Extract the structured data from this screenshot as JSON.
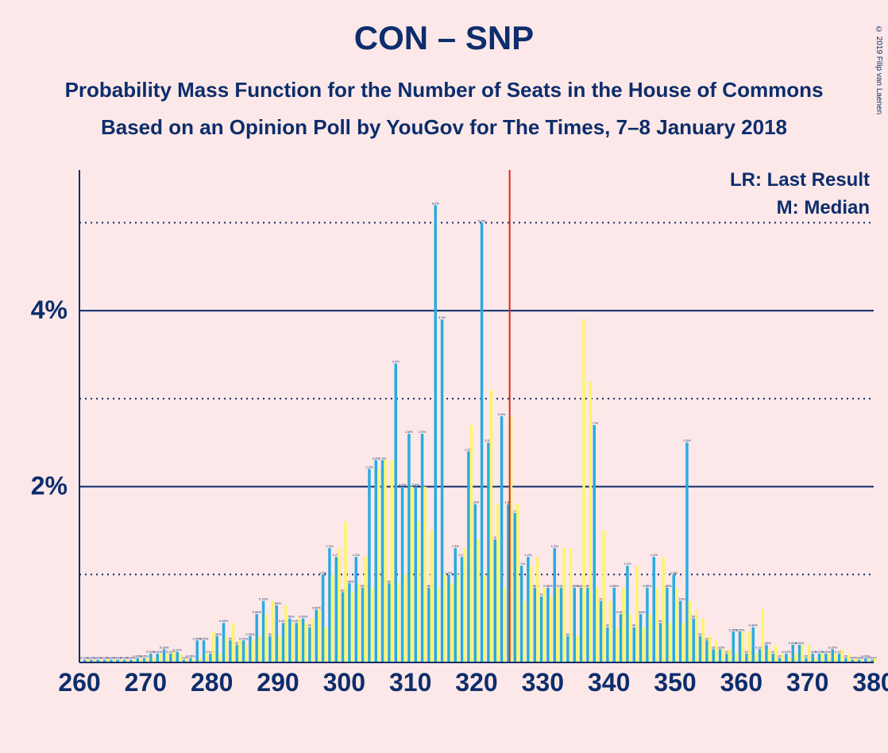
{
  "title": "CON – SNP",
  "subtitle1": "Probability Mass Function for the Number of Seats in the House of Commons",
  "subtitle2": "Based on an Opinion Poll by YouGov for The Times, 7–8 January 2018",
  "copyright": "© 2019 Filip van Laenen",
  "legend": {
    "lr": "LR: Last Result",
    "m": "M: Median"
  },
  "chart": {
    "type": "bar",
    "background_color": "#fce8e8",
    "xlim": [
      260,
      380
    ],
    "ylim": [
      0,
      5.6
    ],
    "x_ticks": [
      260,
      270,
      280,
      290,
      300,
      310,
      320,
      330,
      340,
      350,
      360,
      370,
      380
    ],
    "y_ticks": [
      2,
      4
    ],
    "y_dotted": [
      1,
      3,
      5
    ],
    "y_axis_format": "%",
    "median_line_x": 325,
    "median_line_color": "#d52b1e",
    "grid_color": "#0d2d6c",
    "axis_color": "#0d2d6c",
    "axis_fontsize": 32,
    "title_fontsize": 42,
    "subtitle_fontsize": 26,
    "legend_fontsize": 24,
    "bar_colors": {
      "blue": "#29abe2",
      "yellow": "#fff56b"
    },
    "series_blue": [
      {
        "x": 261,
        "p": 0.03
      },
      {
        "x": 262,
        "p": 0.03
      },
      {
        "x": 263,
        "p": 0.03
      },
      {
        "x": 264,
        "p": 0.03
      },
      {
        "x": 265,
        "p": 0.03
      },
      {
        "x": 266,
        "p": 0.03
      },
      {
        "x": 267,
        "p": 0.03
      },
      {
        "x": 268,
        "p": 0.03
      },
      {
        "x": 269,
        "p": 0.05
      },
      {
        "x": 270,
        "p": 0.05
      },
      {
        "x": 271,
        "p": 0.1
      },
      {
        "x": 272,
        "p": 0.1
      },
      {
        "x": 273,
        "p": 0.15
      },
      {
        "x": 274,
        "p": 0.1
      },
      {
        "x": 275,
        "p": 0.12
      },
      {
        "x": 276,
        "p": 0.03
      },
      {
        "x": 277,
        "p": 0.05
      },
      {
        "x": 278,
        "p": 0.25
      },
      {
        "x": 279,
        "p": 0.25
      },
      {
        "x": 280,
        "p": 0.1
      },
      {
        "x": 281,
        "p": 0.3
      },
      {
        "x": 282,
        "p": 0.45
      },
      {
        "x": 283,
        "p": 0.25
      },
      {
        "x": 284,
        "p": 0.2
      },
      {
        "x": 285,
        "p": 0.25
      },
      {
        "x": 286,
        "p": 0.3
      },
      {
        "x": 287,
        "p": 0.55
      },
      {
        "x": 288,
        "p": 0.7
      },
      {
        "x": 289,
        "p": 0.3
      },
      {
        "x": 290,
        "p": 0.65
      },
      {
        "x": 291,
        "p": 0.45
      },
      {
        "x": 292,
        "p": 0.5
      },
      {
        "x": 293,
        "p": 0.45
      },
      {
        "x": 294,
        "p": 0.5
      },
      {
        "x": 295,
        "p": 0.4
      },
      {
        "x": 296,
        "p": 0.6
      },
      {
        "x": 297,
        "p": 1.0
      },
      {
        "x": 298,
        "p": 1.3
      },
      {
        "x": 299,
        "p": 1.2
      },
      {
        "x": 300,
        "p": 0.8
      },
      {
        "x": 301,
        "p": 0.9
      },
      {
        "x": 302,
        "p": 1.2
      },
      {
        "x": 303,
        "p": 0.85
      },
      {
        "x": 304,
        "p": 2.2
      },
      {
        "x": 305,
        "p": 2.3
      },
      {
        "x": 306,
        "p": 2.3
      },
      {
        "x": 307,
        "p": 0.9
      },
      {
        "x": 308,
        "p": 3.4
      },
      {
        "x": 309,
        "p": 2.0
      },
      {
        "x": 310,
        "p": 2.6
      },
      {
        "x": 311,
        "p": 2.0
      },
      {
        "x": 312,
        "p": 2.6
      },
      {
        "x": 313,
        "p": 0.85
      },
      {
        "x": 314,
        "p": 5.2
      },
      {
        "x": 315,
        "p": 3.9
      },
      {
        "x": 316,
        "p": 1.0
      },
      {
        "x": 317,
        "p": 1.3
      },
      {
        "x": 318,
        "p": 1.2
      },
      {
        "x": 319,
        "p": 2.4
      },
      {
        "x": 320,
        "p": 1.8
      },
      {
        "x": 321,
        "p": 5.0
      },
      {
        "x": 322,
        "p": 2.5
      },
      {
        "x": 323,
        "p": 1.4
      },
      {
        "x": 324,
        "p": 2.8
      },
      {
        "x": 325,
        "p": 1.8
      },
      {
        "x": 326,
        "p": 1.7
      },
      {
        "x": 327,
        "p": 1.1
      },
      {
        "x": 328,
        "p": 1.2
      },
      {
        "x": 329,
        "p": 0.85
      },
      {
        "x": 330,
        "p": 0.75
      },
      {
        "x": 331,
        "p": 0.85
      },
      {
        "x": 332,
        "p": 1.3
      },
      {
        "x": 333,
        "p": 0.85
      },
      {
        "x": 334,
        "p": 0.3
      },
      {
        "x": 335,
        "p": 0.85
      },
      {
        "x": 336,
        "p": 0.85
      },
      {
        "x": 337,
        "p": 0.85
      },
      {
        "x": 338,
        "p": 2.7
      },
      {
        "x": 339,
        "p": 0.7
      },
      {
        "x": 340,
        "p": 0.4
      },
      {
        "x": 341,
        "p": 0.85
      },
      {
        "x": 342,
        "p": 0.55
      },
      {
        "x": 343,
        "p": 1.1
      },
      {
        "x": 344,
        "p": 0.4
      },
      {
        "x": 345,
        "p": 0.55
      },
      {
        "x": 346,
        "p": 0.85
      },
      {
        "x": 347,
        "p": 1.2
      },
      {
        "x": 348,
        "p": 0.45
      },
      {
        "x": 349,
        "p": 0.85
      },
      {
        "x": 350,
        "p": 1.0
      },
      {
        "x": 351,
        "p": 0.7
      },
      {
        "x": 352,
        "p": 2.5
      },
      {
        "x": 353,
        "p": 0.5
      },
      {
        "x": 354,
        "p": 0.3
      },
      {
        "x": 355,
        "p": 0.25
      },
      {
        "x": 356,
        "p": 0.15
      },
      {
        "x": 357,
        "p": 0.15
      },
      {
        "x": 358,
        "p": 0.1
      },
      {
        "x": 359,
        "p": 0.35
      },
      {
        "x": 360,
        "p": 0.35
      },
      {
        "x": 361,
        "p": 0.1
      },
      {
        "x": 362,
        "p": 0.4
      },
      {
        "x": 363,
        "p": 0.15
      },
      {
        "x": 364,
        "p": 0.2
      },
      {
        "x": 365,
        "p": 0.1
      },
      {
        "x": 366,
        "p": 0.05
      },
      {
        "x": 367,
        "p": 0.1
      },
      {
        "x": 368,
        "p": 0.2
      },
      {
        "x": 369,
        "p": 0.2
      },
      {
        "x": 370,
        "p": 0.05
      },
      {
        "x": 371,
        "p": 0.1
      },
      {
        "x": 372,
        "p": 0.1
      },
      {
        "x": 373,
        "p": 0.1
      },
      {
        "x": 374,
        "p": 0.15
      },
      {
        "x": 375,
        "p": 0.1
      },
      {
        "x": 376,
        "p": 0.05
      },
      {
        "x": 377,
        "p": 0.03
      },
      {
        "x": 378,
        "p": 0.03
      },
      {
        "x": 379,
        "p": 0.05
      },
      {
        "x": 380,
        "p": 0.03
      }
    ],
    "series_yellow": [
      {
        "x": 261,
        "p": 0.03
      },
      {
        "x": 262,
        "p": 0.03
      },
      {
        "x": 263,
        "p": 0.03
      },
      {
        "x": 264,
        "p": 0.03
      },
      {
        "x": 265,
        "p": 0.03
      },
      {
        "x": 266,
        "p": 0.03
      },
      {
        "x": 267,
        "p": 0.03
      },
      {
        "x": 268,
        "p": 0.03
      },
      {
        "x": 269,
        "p": 0.05
      },
      {
        "x": 270,
        "p": 0.05
      },
      {
        "x": 271,
        "p": 0.05
      },
      {
        "x": 272,
        "p": 0.1
      },
      {
        "x": 273,
        "p": 0.1
      },
      {
        "x": 274,
        "p": 0.12
      },
      {
        "x": 275,
        "p": 0.1
      },
      {
        "x": 276,
        "p": 0.05
      },
      {
        "x": 277,
        "p": 0.03
      },
      {
        "x": 278,
        "p": 0.05
      },
      {
        "x": 279,
        "p": 0.1
      },
      {
        "x": 280,
        "p": 0.35
      },
      {
        "x": 281,
        "p": 0.1
      },
      {
        "x": 282,
        "p": 0.3
      },
      {
        "x": 283,
        "p": 0.45
      },
      {
        "x": 284,
        "p": 0.25
      },
      {
        "x": 285,
        "p": 0.2
      },
      {
        "x": 286,
        "p": 0.25
      },
      {
        "x": 287,
        "p": 0.3
      },
      {
        "x": 288,
        "p": 0.55
      },
      {
        "x": 289,
        "p": 0.7
      },
      {
        "x": 290,
        "p": 0.3
      },
      {
        "x": 291,
        "p": 0.65
      },
      {
        "x": 292,
        "p": 0.45
      },
      {
        "x": 293,
        "p": 0.5
      },
      {
        "x": 294,
        "p": 0.45
      },
      {
        "x": 295,
        "p": 0.5
      },
      {
        "x": 296,
        "p": 0.6
      },
      {
        "x": 297,
        "p": 0.4
      },
      {
        "x": 298,
        "p": 1.0
      },
      {
        "x": 299,
        "p": 1.3
      },
      {
        "x": 300,
        "p": 1.6
      },
      {
        "x": 301,
        "p": 0.8
      },
      {
        "x": 302,
        "p": 0.9
      },
      {
        "x": 303,
        "p": 1.2
      },
      {
        "x": 304,
        "p": 0.85
      },
      {
        "x": 305,
        "p": 2.2
      },
      {
        "x": 306,
        "p": 2.3
      },
      {
        "x": 307,
        "p": 2.3
      },
      {
        "x": 308,
        "p": 0.9
      },
      {
        "x": 309,
        "p": 1.0
      },
      {
        "x": 310,
        "p": 2.0
      },
      {
        "x": 311,
        "p": 1.6
      },
      {
        "x": 312,
        "p": 2.0
      },
      {
        "x": 313,
        "p": 1.5
      },
      {
        "x": 314,
        "p": 0.85
      },
      {
        "x": 315,
        "p": 1.0
      },
      {
        "x": 316,
        "p": 0.9
      },
      {
        "x": 317,
        "p": 1.0
      },
      {
        "x": 318,
        "p": 1.3
      },
      {
        "x": 319,
        "p": 2.7
      },
      {
        "x": 320,
        "p": 1.4
      },
      {
        "x": 321,
        "p": 1.0
      },
      {
        "x": 322,
        "p": 3.1
      },
      {
        "x": 323,
        "p": 1.8
      },
      {
        "x": 324,
        "p": 0.85
      },
      {
        "x": 325,
        "p": 2.8
      },
      {
        "x": 326,
        "p": 1.8
      },
      {
        "x": 327,
        "p": 0.7
      },
      {
        "x": 328,
        "p": 1.1
      },
      {
        "x": 329,
        "p": 1.2
      },
      {
        "x": 330,
        "p": 0.85
      },
      {
        "x": 331,
        "p": 0.75
      },
      {
        "x": 332,
        "p": 0.85
      },
      {
        "x": 333,
        "p": 1.3
      },
      {
        "x": 334,
        "p": 1.3
      },
      {
        "x": 335,
        "p": 0.3
      },
      {
        "x": 336,
        "p": 3.9
      },
      {
        "x": 337,
        "p": 3.2
      },
      {
        "x": 338,
        "p": 0.85
      },
      {
        "x": 339,
        "p": 1.5
      },
      {
        "x": 340,
        "p": 0.7
      },
      {
        "x": 341,
        "p": 0.4
      },
      {
        "x": 342,
        "p": 0.85
      },
      {
        "x": 343,
        "p": 0.55
      },
      {
        "x": 344,
        "p": 1.1
      },
      {
        "x": 345,
        "p": 0.4
      },
      {
        "x": 346,
        "p": 0.55
      },
      {
        "x": 347,
        "p": 0.85
      },
      {
        "x": 348,
        "p": 1.2
      },
      {
        "x": 349,
        "p": 0.45
      },
      {
        "x": 350,
        "p": 0.85
      },
      {
        "x": 351,
        "p": 0.45
      },
      {
        "x": 352,
        "p": 0.7
      },
      {
        "x": 353,
        "p": 0.6
      },
      {
        "x": 354,
        "p": 0.5
      },
      {
        "x": 355,
        "p": 0.3
      },
      {
        "x": 356,
        "p": 0.25
      },
      {
        "x": 357,
        "p": 0.15
      },
      {
        "x": 358,
        "p": 0.15
      },
      {
        "x": 359,
        "p": 0.1
      },
      {
        "x": 360,
        "p": 0.35
      },
      {
        "x": 361,
        "p": 0.35
      },
      {
        "x": 362,
        "p": 0.1
      },
      {
        "x": 363,
        "p": 0.6
      },
      {
        "x": 364,
        "p": 0.15
      },
      {
        "x": 365,
        "p": 0.2
      },
      {
        "x": 366,
        "p": 0.1
      },
      {
        "x": 367,
        "p": 0.05
      },
      {
        "x": 368,
        "p": 0.1
      },
      {
        "x": 369,
        "p": 0.2
      },
      {
        "x": 370,
        "p": 0.2
      },
      {
        "x": 371,
        "p": 0.05
      },
      {
        "x": 372,
        "p": 0.1
      },
      {
        "x": 373,
        "p": 0.1
      },
      {
        "x": 374,
        "p": 0.1
      },
      {
        "x": 375,
        "p": 0.15
      },
      {
        "x": 376,
        "p": 0.1
      },
      {
        "x": 377,
        "p": 0.05
      },
      {
        "x": 378,
        "p": 0.03
      },
      {
        "x": 379,
        "p": 0.03
      },
      {
        "x": 380,
        "p": 0.05
      }
    ]
  }
}
